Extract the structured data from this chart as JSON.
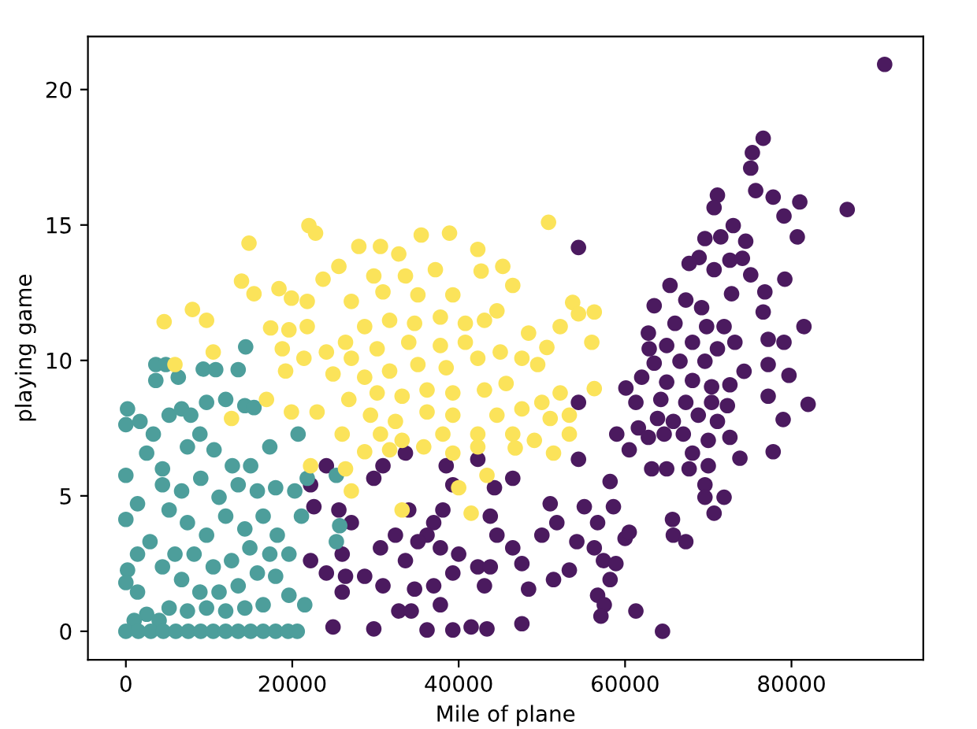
{
  "chart_data": {
    "type": "scatter",
    "xlabel": "Mile of plane",
    "ylabel": "playing game",
    "xlim": [
      -4560,
      95840
    ],
    "xticks": [
      0,
      20000,
      40000,
      60000,
      80000
    ],
    "ylim": [
      -1.05,
      21.96
    ],
    "yticks": [
      0,
      5,
      10,
      15,
      20
    ],
    "marker": "circle",
    "series": [
      {
        "color": "#4b1a5f",
        "x": [
          91200,
          86700,
          76600,
          75300,
          75100,
          75700,
          77800,
          81000,
          71100,
          70700,
          79100,
          80700,
          73000,
          69600,
          71500,
          74500,
          68900,
          67700,
          70700,
          72600,
          74100,
          75100,
          79200,
          65400,
          72800,
          76800,
          63500,
          67300,
          69200,
          76600,
          62800,
          66000,
          69800,
          71900,
          81500,
          62900,
          65000,
          68100,
          71100,
          73200,
          77200,
          79100,
          63500,
          66600,
          69600,
          74300,
          79700,
          77200,
          60100,
          62000,
          65000,
          68100,
          70400,
          72600,
          61300,
          64300,
          67300,
          70400,
          72300,
          77200,
          82000,
          59000,
          61600,
          63900,
          65800,
          68800,
          71100,
          79000,
          60500,
          62800,
          64700,
          67000,
          68100,
          70000,
          72600,
          77800,
          73800,
          63200,
          65000,
          67700,
          70000,
          58200,
          69600,
          69600,
          70700,
          71900,
          65700,
          65800,
          67300,
          60000,
          60500,
          54400,
          54400,
          54400,
          58600,
          56700,
          55100,
          51000,
          51800,
          50000,
          54200,
          56300,
          57400,
          58900,
          53300,
          51400,
          58200,
          56700,
          57500,
          57100,
          61300,
          64500,
          47600,
          48400,
          46500,
          44600,
          43800,
          46500,
          44300,
          42300,
          39300,
          38500,
          37000,
          38100,
          36200,
          37800,
          40000,
          42300,
          39300,
          37000,
          37800,
          34700,
          33600,
          35100,
          32400,
          30600,
          29800,
          30900,
          33600,
          34000,
          27100,
          25600,
          22600,
          22200,
          24100,
          26000,
          22200,
          24100,
          26400,
          26000,
          28700,
          30900,
          32800,
          34300,
          24900,
          29800,
          36200,
          39300,
          41500,
          43400,
          47600,
          43100,
          43800
        ],
        "values": [
          20.93,
          15.57,
          18.2,
          17.67,
          17.1,
          16.27,
          16.03,
          15.85,
          16.1,
          15.64,
          15.33,
          14.56,
          14.98,
          14.5,
          14.56,
          14.4,
          13.8,
          13.58,
          13.35,
          13.7,
          13.77,
          13.16,
          13.0,
          12.77,
          12.46,
          12.53,
          12.02,
          12.23,
          11.95,
          11.79,
          11.01,
          11.37,
          11.25,
          11.25,
          11.25,
          10.43,
          10.55,
          10.67,
          10.43,
          10.67,
          10.78,
          10.67,
          9.9,
          9.97,
          9.97,
          9.6,
          9.45,
          9.85,
          8.98,
          9.38,
          9.2,
          9.26,
          9.03,
          9.1,
          8.45,
          8.56,
          8.45,
          8.45,
          8.33,
          8.68,
          8.38,
          7.28,
          7.51,
          7.86,
          7.75,
          7.98,
          7.75,
          7.82,
          6.7,
          7.16,
          7.28,
          7.28,
          6.58,
          7.05,
          7.16,
          6.63,
          6.39,
          6.0,
          6.0,
          6.0,
          6.11,
          5.53,
          5.41,
          4.95,
          4.36,
          4.95,
          4.13,
          3.55,
          3.31,
          3.43,
          3.66,
          14.17,
          8.45,
          6.35,
          4.6,
          4.01,
          4.6,
          4.71,
          4.01,
          3.55,
          3.31,
          3.08,
          2.61,
          2.5,
          2.26,
          1.91,
          1.91,
          1.33,
          0.98,
          0.56,
          0.75,
          0,
          2.5,
          1.56,
          3.08,
          3.55,
          4.25,
          5.65,
          5.3,
          6.35,
          5.41,
          6.11,
          4.01,
          4.48,
          3.55,
          3.08,
          2.85,
          2.38,
          2.15,
          1.68,
          0.98,
          1.56,
          2.61,
          3.31,
          3.55,
          3.08,
          5.65,
          6.11,
          6.58,
          4.48,
          4.01,
          4.48,
          4.6,
          5.41,
          6.11,
          2.85,
          2.61,
          2.15,
          2.03,
          1.45,
          2.03,
          1.68,
          0.75,
          0.75,
          0.16,
          0.09,
          0.05,
          0.05,
          0.16,
          0.09,
          0.28,
          1.68,
          2.38
        ]
      },
      {
        "color": "#4d9e9b",
        "x": [
          3600,
          4800,
          3600,
          6300,
          9300,
          10800,
          13500,
          14400,
          200,
          0,
          1700,
          3300,
          5200,
          6700,
          7800,
          9700,
          12000,
          14300,
          15400,
          17300,
          20700,
          20300,
          18000,
          21800,
          25300,
          25700,
          25300,
          21100,
          0,
          0,
          200,
          0,
          1400,
          2500,
          4400,
          2900,
          1400,
          1400,
          2500,
          1000,
          4400,
          7400,
          8900,
          10600,
          12800,
          15000,
          15800,
          13500,
          11200,
          9000,
          6700,
          5200,
          7400,
          9700,
          12000,
          14300,
          16500,
          18200,
          19600,
          17300,
          14900,
          12700,
          10500,
          8200,
          5900,
          4400,
          6700,
          8900,
          11200,
          13500,
          15800,
          18000,
          19600,
          21500,
          16500,
          14300,
          12000,
          9700,
          7400,
          5200,
          4000,
          0,
          1500,
          3000,
          4500,
          6000,
          7500,
          9000,
          10500,
          12000,
          13500,
          15000,
          16500,
          18000,
          19500,
          20600
        ],
        "values": [
          9.85,
          9.85,
          9.26,
          9.38,
          9.68,
          9.66,
          9.66,
          10.5,
          8.21,
          7.63,
          7.75,
          7.28,
          7.98,
          8.21,
          7.98,
          8.45,
          8.56,
          8.33,
          8.26,
          6.81,
          7.28,
          5.18,
          5.3,
          5.65,
          5.76,
          3.9,
          3.31,
          4.25,
          5.76,
          4.13,
          2.26,
          1.8,
          4.71,
          6.58,
          6.0,
          3.31,
          2.85,
          1.45,
          0.63,
          0.4,
          5.41,
          6.81,
          7.28,
          6.7,
          6.11,
          6.11,
          5.18,
          5.41,
          4.95,
          5.65,
          5.18,
          4.48,
          4.01,
          3.55,
          4.25,
          3.78,
          4.25,
          3.55,
          2.85,
          2.85,
          3.08,
          2.61,
          2.38,
          2.85,
          2.85,
          2.38,
          1.91,
          1.45,
          1.45,
          1.68,
          2.15,
          2.03,
          1.33,
          0.98,
          0.98,
          0.86,
          0.75,
          0.86,
          0.75,
          0.86,
          0.4,
          0,
          0,
          0,
          0,
          0,
          0,
          0,
          0,
          0,
          0,
          0,
          0,
          0,
          0,
          0
        ]
      },
      {
        "color": "#fbe35a",
        "x": [
          50800,
          22000,
          22800,
          14800,
          35500,
          38900,
          30600,
          28000,
          32800,
          42300,
          13900,
          15400,
          8000,
          9700,
          4600,
          10500,
          5900,
          18400,
          19900,
          21800,
          23700,
          25600,
          29800,
          33600,
          37200,
          42700,
          45300,
          46500,
          53700,
          56300,
          56000,
          54400,
          52200,
          50600,
          48400,
          44600,
          39300,
          35100,
          30900,
          27100,
          17400,
          19600,
          21800,
          18800,
          21400,
          19200,
          24100,
          26400,
          28700,
          31700,
          34700,
          37800,
          40800,
          43100,
          40800,
          37800,
          34000,
          30200,
          27100,
          24900,
          28700,
          31700,
          35100,
          38500,
          42300,
          45000,
          47600,
          49500,
          45700,
          43100,
          39300,
          36200,
          33200,
          30200,
          26800,
          22980,
          19900,
          16900,
          12700,
          47600,
          50000,
          52200,
          56300,
          53300,
          51000,
          49100,
          53300,
          51400,
          46500,
          44600,
          42300,
          39300,
          36200,
          32400,
          29400,
          26000,
          30600,
          33200,
          35800,
          38100,
          28700,
          31700,
          46800,
          42300,
          39300,
          22200,
          26400,
          27100,
          43400,
          41500,
          33200,
          40000
        ],
        "values": [
          15.1,
          14.98,
          14.7,
          14.33,
          14.63,
          14.7,
          14.21,
          14.21,
          13.93,
          14.1,
          12.93,
          12.46,
          11.88,
          11.48,
          11.43,
          10.31,
          9.85,
          12.65,
          12.3,
          12.18,
          13.0,
          13.47,
          13.12,
          13.12,
          13.35,
          13.3,
          13.47,
          12.77,
          12.14,
          11.79,
          10.67,
          11.72,
          11.25,
          10.48,
          11.01,
          11.83,
          12.42,
          12.42,
          12.53,
          12.18,
          11.2,
          11.13,
          11.25,
          10.43,
          10.08,
          9.61,
          10.31,
          10.67,
          11.25,
          11.48,
          11.37,
          11.6,
          11.37,
          11.48,
          10.67,
          10.55,
          10.67,
          10.43,
          10.08,
          9.5,
          9.38,
          9.61,
          9.85,
          9.73,
          10.08,
          10.31,
          10.08,
          9.85,
          9.15,
          8.91,
          8.8,
          8.91,
          8.68,
          8.8,
          8.56,
          8.1,
          8.1,
          8.56,
          7.86,
          8.21,
          8.45,
          8.8,
          8.96,
          7.98,
          7.86,
          7.05,
          7.28,
          6.58,
          7.28,
          7.98,
          7.28,
          7.98,
          8.1,
          7.75,
          7.98,
          7.28,
          7.28,
          7.05,
          6.81,
          7.28,
          6.63,
          6.7,
          6.77,
          6.81,
          6.58,
          6.11,
          6.0,
          5.18,
          5.76,
          4.36,
          4.48,
          5.3
        ]
      }
    ]
  }
}
